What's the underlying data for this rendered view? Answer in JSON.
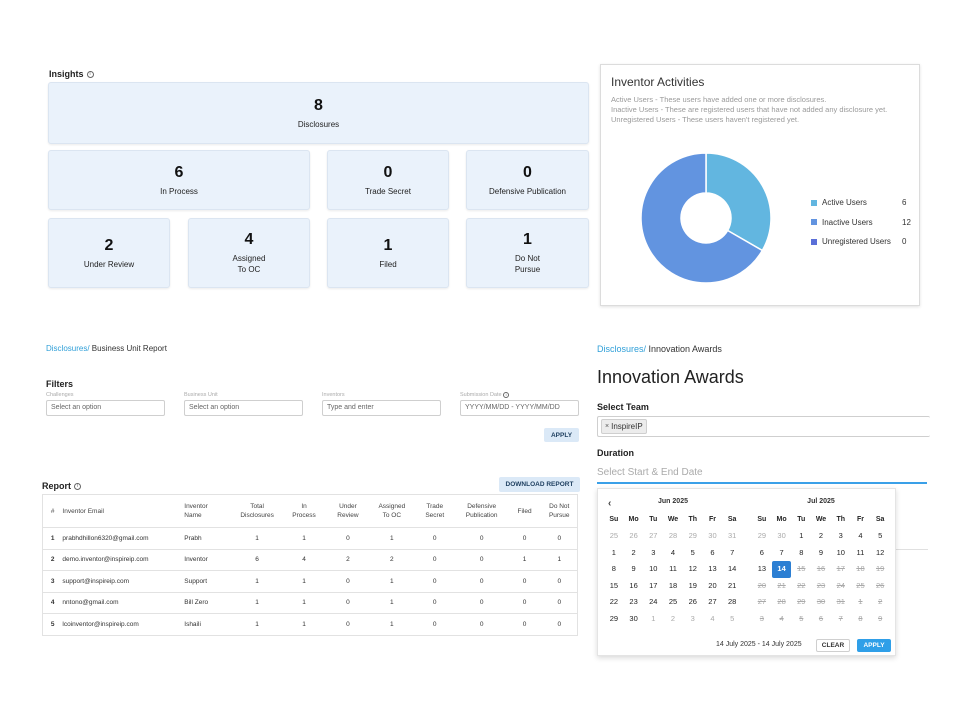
{
  "insights": {
    "title": "Insights",
    "cards": [
      {
        "value": "8",
        "label": "Disclosures"
      },
      {
        "value": "6",
        "label": "In Process"
      },
      {
        "value": "0",
        "label": "Trade Secret"
      },
      {
        "value": "0",
        "label": "Defensive Publication"
      },
      {
        "value": "2",
        "label": "Under Review"
      },
      {
        "value": "4",
        "label": "Assigned\nTo OC"
      },
      {
        "value": "1",
        "label": "Filed"
      },
      {
        "value": "1",
        "label": "Do Not\nPursue"
      }
    ]
  },
  "activities": {
    "title": "Inventor Activities",
    "descriptions": [
      "Active Users - These users have added one or more disclosures.",
      "Inactive Users - These are registered users that have not added any disclosure yet.",
      "Unregistered Users - These users haven't registered yet."
    ],
    "legend": [
      {
        "name": "Active Users",
        "value": "6",
        "color": "#62b6e0"
      },
      {
        "name": "Inactive Users",
        "value": "12",
        "color": "#6294e0"
      },
      {
        "name": "Unregistered Users",
        "value": "0",
        "color": "#5a6fd8"
      }
    ],
    "chart_data": {
      "type": "pie",
      "categories": [
        "Active Users",
        "Inactive Users",
        "Unregistered Users"
      ],
      "values": [
        6,
        12,
        0
      ],
      "colors": [
        "#62b6e0",
        "#6294e0",
        "#5a6fd8"
      ],
      "title": "Inventor Activities",
      "legend_position": "right"
    }
  },
  "bu_report": {
    "breadcrumb_link": "Disclosures/",
    "breadcrumb_current": " Business Unit Report",
    "filters_title": "Filters",
    "filters": [
      {
        "label": "Challenges",
        "placeholder": "Select an option"
      },
      {
        "label": "Business Unit",
        "placeholder": "Select an option"
      },
      {
        "label": "Inventors",
        "placeholder": "Type and enter"
      },
      {
        "label": "Submission Date",
        "placeholder": "YYYY/MM/DD - YYYY/MM/DD"
      }
    ],
    "apply_label": "APPLY",
    "report_title": "Report",
    "download_label": "DOWNLOAD REPORT",
    "columns": [
      "#",
      "Inventor Email",
      "Inventor\nName",
      "Total\nDisclosures",
      "In\nProcess",
      "Under\nReview",
      "Assigned\nTo OC",
      "Trade\nSecret",
      "Defensive\nPublication",
      "Filed",
      "Do Not\nPursue"
    ],
    "rows": [
      [
        "1",
        "prabhdhillon6320@gmail.com",
        "Prabh",
        "1",
        "1",
        "0",
        "1",
        "0",
        "0",
        "0",
        "0"
      ],
      [
        "2",
        "demo.inventor@inspireip.com",
        "Inventor",
        "6",
        "4",
        "2",
        "2",
        "0",
        "0",
        "1",
        "1"
      ],
      [
        "3",
        "support@inspireip.com",
        "Support",
        "1",
        "1",
        "0",
        "1",
        "0",
        "0",
        "0",
        "0"
      ],
      [
        "4",
        "nntono@gmail.com",
        "Bill Zero",
        "1",
        "1",
        "0",
        "1",
        "0",
        "0",
        "0",
        "0"
      ],
      [
        "5",
        "lcoinventor@inspireip.com",
        "Ishaili",
        "1",
        "1",
        "0",
        "1",
        "0",
        "0",
        "0",
        "0"
      ]
    ]
  },
  "awards": {
    "breadcrumb_link": "Disclosures/",
    "breadcrumb_current": " Innovation Awards",
    "title": "Innovation Awards",
    "team_label": "Select Team",
    "team_chip": "InspireIP",
    "duration_label": "Duration",
    "duration_placeholder": "Select Start & End Date",
    "calendar": {
      "prev_icon": "‹",
      "days_of_week": [
        "Su",
        "Mo",
        "Tu",
        "We",
        "Th",
        "Fr",
        "Sa"
      ],
      "months": [
        {
          "title": "Jun 2025",
          "weeks": [
            [
              {
                "d": "25",
                "s": "off"
              },
              {
                "d": "26",
                "s": "off"
              },
              {
                "d": "27",
                "s": "off"
              },
              {
                "d": "28",
                "s": "off"
              },
              {
                "d": "29",
                "s": "off"
              },
              {
                "d": "30",
                "s": "off"
              },
              {
                "d": "31",
                "s": "off"
              }
            ],
            [
              {
                "d": "1"
              },
              {
                "d": "2"
              },
              {
                "d": "3"
              },
              {
                "d": "4"
              },
              {
                "d": "5"
              },
              {
                "d": "6"
              },
              {
                "d": "7"
              }
            ],
            [
              {
                "d": "8"
              },
              {
                "d": "9"
              },
              {
                "d": "10"
              },
              {
                "d": "11"
              },
              {
                "d": "12"
              },
              {
                "d": "13"
              },
              {
                "d": "14"
              }
            ],
            [
              {
                "d": "15"
              },
              {
                "d": "16"
              },
              {
                "d": "17"
              },
              {
                "d": "18"
              },
              {
                "d": "19"
              },
              {
                "d": "20"
              },
              {
                "d": "21"
              }
            ],
            [
              {
                "d": "22"
              },
              {
                "d": "23"
              },
              {
                "d": "24"
              },
              {
                "d": "25"
              },
              {
                "d": "26"
              },
              {
                "d": "27"
              },
              {
                "d": "28"
              }
            ],
            [
              {
                "d": "29"
              },
              {
                "d": "30"
              },
              {
                "d": "1",
                "s": "off"
              },
              {
                "d": "2",
                "s": "off"
              },
              {
                "d": "3",
                "s": "off"
              },
              {
                "d": "4",
                "s": "off"
              },
              {
                "d": "5",
                "s": "off"
              }
            ]
          ]
        },
        {
          "title": "Jul 2025",
          "weeks": [
            [
              {
                "d": "29",
                "s": "off"
              },
              {
                "d": "30",
                "s": "off"
              },
              {
                "d": "1"
              },
              {
                "d": "2"
              },
              {
                "d": "3"
              },
              {
                "d": "4"
              },
              {
                "d": "5"
              }
            ],
            [
              {
                "d": "6"
              },
              {
                "d": "7"
              },
              {
                "d": "8"
              },
              {
                "d": "9"
              },
              {
                "d": "10"
              },
              {
                "d": "11"
              },
              {
                "d": "12"
              }
            ],
            [
              {
                "d": "13"
              },
              {
                "d": "14",
                "s": "sel"
              },
              {
                "d": "15",
                "s": "dis"
              },
              {
                "d": "16",
                "s": "dis"
              },
              {
                "d": "17",
                "s": "dis"
              },
              {
                "d": "18",
                "s": "dis"
              },
              {
                "d": "19",
                "s": "dis"
              }
            ],
            [
              {
                "d": "20",
                "s": "dis"
              },
              {
                "d": "21",
                "s": "dis"
              },
              {
                "d": "22",
                "s": "dis"
              },
              {
                "d": "23",
                "s": "dis"
              },
              {
                "d": "24",
                "s": "dis"
              },
              {
                "d": "25",
                "s": "dis"
              },
              {
                "d": "26",
                "s": "dis"
              }
            ],
            [
              {
                "d": "27",
                "s": "dis"
              },
              {
                "d": "28",
                "s": "dis"
              },
              {
                "d": "29",
                "s": "dis"
              },
              {
                "d": "30",
                "s": "dis"
              },
              {
                "d": "31",
                "s": "dis"
              },
              {
                "d": "1",
                "s": "dis"
              },
              {
                "d": "2",
                "s": "dis"
              }
            ],
            [
              {
                "d": "3",
                "s": "dis"
              },
              {
                "d": "4",
                "s": "dis"
              },
              {
                "d": "5",
                "s": "dis"
              },
              {
                "d": "6",
                "s": "dis"
              },
              {
                "d": "7",
                "s": "dis"
              },
              {
                "d": "8",
                "s": "dis"
              },
              {
                "d": "9",
                "s": "dis"
              }
            ]
          ]
        }
      ],
      "range_text": "14 July 2025 - 14 July 2025",
      "clear_label": "CLEAR",
      "apply_label": "APPLY"
    }
  }
}
